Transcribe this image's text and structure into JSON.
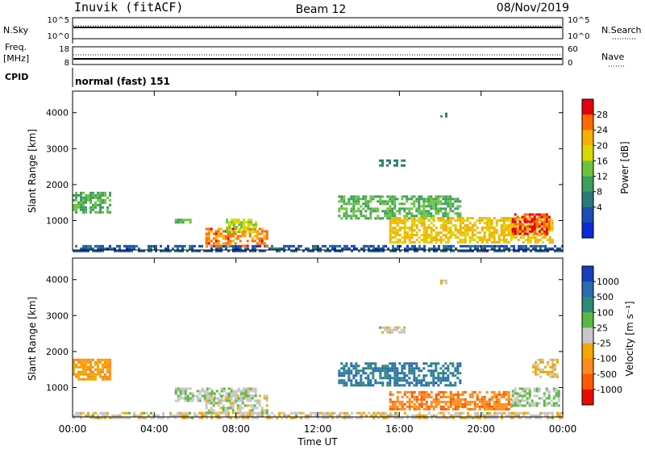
{
  "header": {
    "station": "Inuvik (fitACF)",
    "beam": "Beam 12",
    "date": "08/Nov/2019"
  },
  "meta_panels": {
    "nsky": {
      "left_label": "N.Sky",
      "left_ticks": [
        "10^5",
        "10^0"
      ],
      "right_ticks": [
        "10^5",
        "10^0"
      ],
      "right_label": "N.Search"
    },
    "freq": {
      "left_label_top": "Freq.",
      "left_label_bottom": "[MHz]",
      "left_ticks": [
        "18",
        "8"
      ],
      "right_ticks": [
        "60",
        "0"
      ],
      "right_label": "Nave"
    },
    "cpid": {
      "label": "CPID",
      "value": "normal (fast) 151"
    }
  },
  "colorbars": {
    "power": {
      "label": "Power [dB]",
      "ticks": [
        "28",
        "24",
        "20",
        "16",
        "12",
        "8",
        "4"
      ],
      "colors": [
        "#e4000c",
        "#ff6a00",
        "#f7b000",
        "#d8d800",
        "#6cc43c",
        "#3e9e5e",
        "#2c7a78",
        "#1c4fb0",
        "#0a2ad8"
      ]
    },
    "velocity": {
      "label": "Velocity [m s⁻¹]",
      "ticks": [
        "1000",
        "500",
        "100",
        "25",
        "-25",
        "-100",
        "-500",
        "-1000"
      ],
      "colors": [
        "#1a3cc0",
        "#2a6cb0",
        "#2f8a78",
        "#5cb844",
        "#c8c8c8",
        "#f2a800",
        "#ff8a1e",
        "#ff5a00",
        "#e80c00"
      ]
    }
  },
  "axes": {
    "y_label": "Slant Range [km]",
    "y_ticks": [
      "4000",
      "3000",
      "2000",
      "1000"
    ],
    "x_ticks": [
      "00:00",
      "04:00",
      "08:00",
      "12:00",
      "16:00",
      "20:00",
      "00:00"
    ],
    "x_label": "Time UT"
  },
  "chart_data": [
    {
      "type": "heatmap",
      "title": "",
      "quantity": "Power [dB]",
      "x": [
        "00:00",
        "04:00",
        "08:00",
        "12:00",
        "16:00",
        "20:00",
        "00:00"
      ],
      "xlabel": "Time UT",
      "ylabel": "Slant Range [km]",
      "xlim_hours": [
        0,
        24
      ],
      "ylim": [
        180,
        4600
      ],
      "clim": [
        0,
        32
      ],
      "regions": [
        {
          "t0": 0.0,
          "t1": 1.8,
          "r0": 1200,
          "r1": 1800,
          "value": 14
        },
        {
          "t0": 0.0,
          "t1": 24.0,
          "r0": 180,
          "r1": 320,
          "value": 6
        },
        {
          "t0": 6.5,
          "t1": 9.5,
          "r0": 300,
          "r1": 800,
          "value": 26
        },
        {
          "t0": 7.5,
          "t1": 9.0,
          "r0": 700,
          "r1": 1050,
          "value": 18
        },
        {
          "t0": 5.0,
          "t1": 5.8,
          "r0": 950,
          "r1": 1050,
          "value": 14
        },
        {
          "t0": 13.0,
          "t1": 19.0,
          "r0": 1050,
          "r1": 1700,
          "value": 14
        },
        {
          "t0": 15.5,
          "t1": 23.5,
          "r0": 400,
          "r1": 1100,
          "value": 22
        },
        {
          "t0": 21.5,
          "t1": 23.3,
          "r0": 600,
          "r1": 1200,
          "value": 29
        },
        {
          "t0": 15.0,
          "t1": 16.2,
          "r0": 2550,
          "r1": 2700,
          "value": 10
        },
        {
          "t0": 18.0,
          "t1": 18.3,
          "r0": 3900,
          "r1": 4000,
          "value": 10
        }
      ]
    },
    {
      "type": "heatmap",
      "title": "",
      "quantity": "Velocity [m s^-1]",
      "x": [
        "00:00",
        "04:00",
        "08:00",
        "12:00",
        "16:00",
        "20:00",
        "00:00"
      ],
      "xlabel": "Time UT",
      "ylabel": "Slant Range [km]",
      "xlim_hours": [
        0,
        24
      ],
      "ylim": [
        180,
        4600
      ],
      "clim": [
        -1000,
        1000
      ],
      "regions": [
        {
          "t0": 0.0,
          "t1": 1.8,
          "r0": 1200,
          "r1": 1800,
          "value": -300
        },
        {
          "t0": 0.0,
          "t1": 24.0,
          "r0": 180,
          "r1": 320,
          "value": -60
        },
        {
          "t0": 6.5,
          "t1": 9.5,
          "r0": 300,
          "r1": 800,
          "value": 0
        },
        {
          "t0": 5.0,
          "t1": 9.0,
          "r0": 600,
          "r1": 1000,
          "value": 60
        },
        {
          "t0": 13.0,
          "t1": 19.0,
          "r0": 1050,
          "r1": 1700,
          "value": 600
        },
        {
          "t0": 15.5,
          "t1": 21.5,
          "r0": 400,
          "r1": 900,
          "value": -500
        },
        {
          "t0": 21.5,
          "t1": 23.8,
          "r0": 500,
          "r1": 1000,
          "value": 80
        },
        {
          "t0": 22.5,
          "t1": 23.8,
          "r0": 1300,
          "r1": 1800,
          "value": -150
        },
        {
          "t0": 15.0,
          "t1": 16.2,
          "r0": 2550,
          "r1": 2700,
          "value": 40
        },
        {
          "t0": 18.0,
          "t1": 18.3,
          "r0": 3900,
          "r1": 4000,
          "value": 20
        }
      ]
    }
  ]
}
